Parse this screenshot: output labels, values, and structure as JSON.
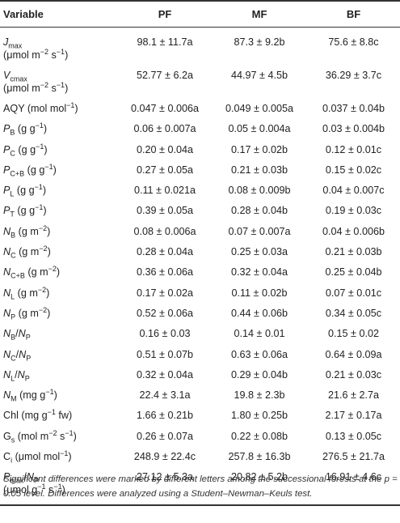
{
  "table": {
    "headers": [
      "Variable",
      "PF",
      "MF",
      "BF"
    ],
    "rows": [
      {
        "var_html": "<i>J</i><sub>max</sub><br>(μmol m<sup>−2</sup> s<sup>−1</sup>)",
        "pf": "98.1 ± 11.7a",
        "mf": "87.3 ± 9.2b",
        "bf": "75.6 ± 8.8c",
        "tall": true
      },
      {
        "var_html": "<i>V</i><sub>cmax</sub><br>(μmol m<sup>−2</sup> s<sup>−1</sup>)",
        "pf": "52.77 ± 6.2a",
        "mf": "44.97 ± 4.5b",
        "bf": "36.29 ± 3.7c",
        "tall": true
      },
      {
        "var_html": "AQY (mol mol<sup>−1</sup>)",
        "pf": "0.047 ± 0.006a",
        "mf": "0.049 ± 0.005a",
        "bf": "0.037 ± 0.04b"
      },
      {
        "var_html": "<i>P</i><sub>B</sub> (g g<sup>−1</sup>)",
        "pf": "0.06 ± 0.007a",
        "mf": "0.05 ± 0.004a",
        "bf": "0.03 ± 0.004b"
      },
      {
        "var_html": "<i>P</i><sub>C</sub> (g g<sup>−1</sup>)",
        "pf": "0.20 ± 0.04a",
        "mf": "0.17 ± 0.02b",
        "bf": "0.12 ± 0.01c"
      },
      {
        "var_html": "<i>P</i><sub>C+B</sub> (g g<sup>−1</sup>)",
        "pf": "0.27 ± 0.05a",
        "mf": "0.21 ± 0.03b",
        "bf": "0.15 ± 0.02c"
      },
      {
        "var_html": "<i>P</i><sub>L</sub> (g g<sup>−1</sup>)",
        "pf": "0.11 ± 0.021a",
        "mf": "0.08 ± 0.009b",
        "bf": "0.04 ± 0.007c"
      },
      {
        "var_html": "<i>P</i><sub>T</sub> (g g<sup>−1</sup>)",
        "pf": "0.39 ± 0.05a",
        "mf": "0.28 ± 0.04b",
        "bf": "0.19 ± 0.03c"
      },
      {
        "var_html": "<i>N</i><sub>B</sub> (g m<sup>−2</sup>)",
        "pf": "0.08 ± 0.006a",
        "mf": "0.07 ± 0.007a",
        "bf": "0.04 ± 0.006b"
      },
      {
        "var_html": "<i>N</i><sub>C</sub> (g m<sup>−2</sup>)",
        "pf": "0.28 ± 0.04a",
        "mf": "0.25 ± 0.03a",
        "bf": "0.21 ± 0.03b"
      },
      {
        "var_html": "<i>N</i><sub>C+B</sub> (g m<sup>−2</sup>)",
        "pf": "0.36 ± 0.06a",
        "mf": "0.32 ± 0.04a",
        "bf": "0.25 ± 0.04b"
      },
      {
        "var_html": "<i>N</i><sub>L</sub> (g m<sup>−2</sup>)",
        "pf": "0.17 ± 0.02a",
        "mf": "0.11 ± 0.02b",
        "bf": "0.07 ± 0.01c"
      },
      {
        "var_html": "<i>N</i><sub>P</sub> (g m<sup>−2</sup>)",
        "pf": "0.52 ± 0.06a",
        "mf": "0.44 ± 0.06b",
        "bf": "0.34 ± 0.05c"
      },
      {
        "var_html": "<i>N</i><sub>B</sub>/<i>N</i><sub>P</sub>",
        "pf": "0.16 ± 0.03",
        "mf": "0.14 ± 0.01",
        "bf": "0.15 ± 0.02"
      },
      {
        "var_html": "<i>N</i><sub>C</sub>/<i>N</i><sub>P</sub>",
        "pf": "0.51 ± 0.07b",
        "mf": "0.63 ± 0.06a",
        "bf": "0.64 ± 0.09a"
      },
      {
        "var_html": "<i>N</i><sub>L</sub>/<i>N</i><sub>P</sub>",
        "pf": "0.32 ± 0.04a",
        "mf": "0.29 ± 0.04b",
        "bf": "0.21 ± 0.03c"
      },
      {
        "var_html": "<i>N</i><sub>M</sub> (mg g<sup>−1</sup>)",
        "pf": "22.4 ± 3.1a",
        "mf": "19.8 ± 2.3b",
        "bf": "21.6 ± 2.7a"
      },
      {
        "var_html": "Chl (mg g<sup>−1</sup> fw)",
        "pf": "1.66 ± 0.21b",
        "mf": "1.80 ± 0.25b",
        "bf": "2.17 ± 0.17a"
      },
      {
        "var_html": "G<sub>s</sub> (mol m<sup>−2</sup> s<sup>−1</sup>)",
        "pf": "0.26 ± 0.07a",
        "mf": "0.22 ± 0.08b",
        "bf": "0.13 ± 0.05c"
      },
      {
        "var_html": "C<sub>i</sub> (μmol mol<sup>−1</sup>)",
        "pf": "248.9 ± 22.4c",
        "mf": "257.8 ± 16.3b",
        "bf": "276.5 ± 21.7a"
      },
      {
        "var_html": "<i>P</i><sub>max</sub>/<i>N</i><sub>P</sub><br>(μmol g<sup>−1</sup> s<sup>−1</sup>)",
        "pf": "27.12 ± 5.3a",
        "mf": "20.82 ± 5.2b",
        "bf": "16.91 ± 4.6c",
        "tall": true
      }
    ]
  },
  "footnote": "Significant differences were marked by different letters among the successional forests at the p = 0.05 level. Differences were analyzed using a Student–Newman–Keuls test."
}
